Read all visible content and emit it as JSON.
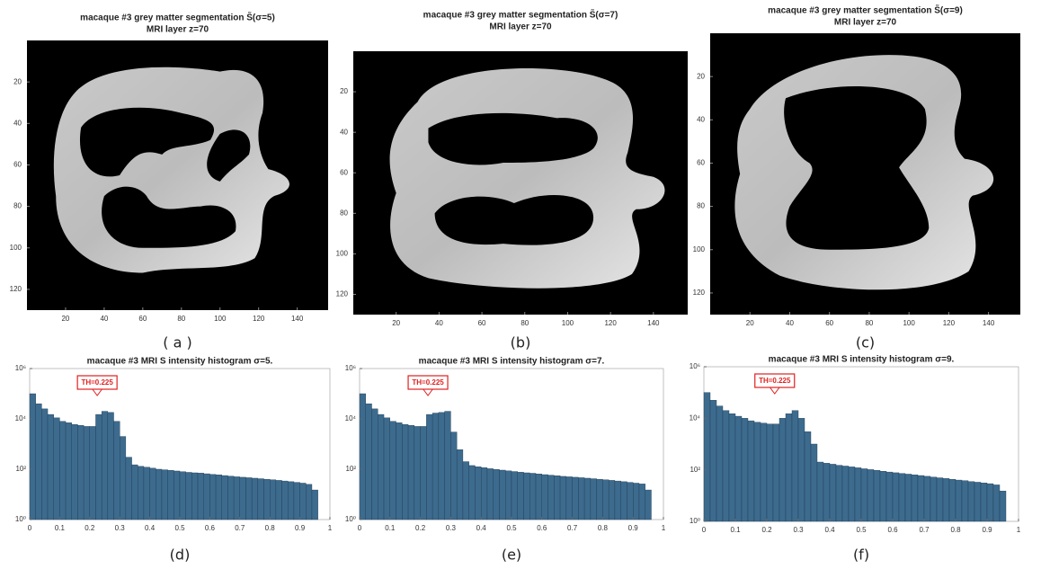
{
  "chart_data": [
    {
      "type": "image",
      "title": "macaque #3 grey matter segmentation S̃(σ=5)",
      "subtitle": "MRI layer z=70",
      "caption": "( a )",
      "xlim": [
        0,
        156
      ],
      "ylim": [
        130,
        0
      ],
      "xticks": [
        20,
        40,
        60,
        80,
        100,
        120,
        140
      ],
      "yticks": [
        20,
        40,
        60,
        80,
        100,
        120
      ]
    },
    {
      "type": "image",
      "title": "macaque #3 grey matter segmentation S̃(σ=7)",
      "subtitle": "MRI layer z=70",
      "caption": "(b)",
      "xlim": [
        0,
        156
      ],
      "ylim": [
        130,
        0
      ],
      "xticks": [
        20,
        40,
        60,
        80,
        100,
        120,
        140
      ],
      "yticks": [
        20,
        40,
        60,
        80,
        100,
        120
      ]
    },
    {
      "type": "image",
      "title": "macaque #3 grey matter segmentation S̃(σ=9)",
      "subtitle": "MRI layer z=70",
      "caption": "(c)",
      "xlim": [
        0,
        156
      ],
      "ylim": [
        130,
        0
      ],
      "xticks": [
        20,
        40,
        60,
        80,
        100,
        120,
        140
      ],
      "yticks": [
        20,
        40,
        60,
        80,
        100,
        120
      ]
    },
    {
      "type": "histogram",
      "title": "macaque #3 MRI S intensity histogram σ=5.",
      "caption": "(d)",
      "color": "#3d6b8e",
      "log_y": true,
      "annotation": {
        "text": "TH=0.225",
        "x": 0.225
      },
      "xlim": [
        0,
        1
      ],
      "ylim": [
        1,
        1000000
      ],
      "xticks": [
        0,
        0.1,
        0.2,
        0.3,
        0.4,
        0.5,
        0.6,
        0.7,
        0.8,
        0.9,
        1
      ],
      "yticks": [
        {
          "value": 1,
          "label": "10⁰"
        },
        {
          "value": 100,
          "label": "10²"
        },
        {
          "value": 10000,
          "label": "10⁴"
        },
        {
          "value": 1000000,
          "label": "10⁶"
        }
      ],
      "bins": [
        0,
        0.02,
        0.04,
        0.06,
        0.08,
        0.1,
        0.12,
        0.14,
        0.16,
        0.18,
        0.2,
        0.22,
        0.24,
        0.26,
        0.28,
        0.3,
        0.32,
        0.34,
        0.36,
        0.38,
        0.4,
        0.42,
        0.44,
        0.46,
        0.48,
        0.5,
        0.52,
        0.54,
        0.56,
        0.58,
        0.6,
        0.62,
        0.64,
        0.66,
        0.68,
        0.7,
        0.72,
        0.74,
        0.76,
        0.78,
        0.8,
        0.82,
        0.84,
        0.86,
        0.88,
        0.9,
        0.92,
        0.94,
        0.96
      ],
      "values": [
        100000,
        40000,
        25000,
        15000,
        11000,
        8000,
        7000,
        6000,
        5500,
        5000,
        5000,
        15000,
        20000,
        18000,
        8000,
        2000,
        300,
        150,
        130,
        120,
        110,
        100,
        95,
        90,
        85,
        80,
        75,
        72,
        70,
        66,
        62,
        60,
        56,
        53,
        50,
        48,
        46,
        44,
        42,
        40,
        38,
        36,
        34,
        32,
        30,
        28,
        25,
        15
      ]
    },
    {
      "type": "histogram",
      "title": "macaque #3 MRI S intensity histogram σ=7.",
      "caption": "(e)",
      "color": "#3d6b8e",
      "log_y": true,
      "annotation": {
        "text": "TH=0.225",
        "x": 0.225
      },
      "xlim": [
        0,
        1
      ],
      "ylim": [
        1,
        1000000
      ],
      "xticks": [
        0,
        0.1,
        0.2,
        0.3,
        0.4,
        0.5,
        0.6,
        0.7,
        0.8,
        0.9,
        1
      ],
      "yticks": [
        {
          "value": 1,
          "label": "10⁰"
        },
        {
          "value": 100,
          "label": "10²"
        },
        {
          "value": 10000,
          "label": "10⁴"
        },
        {
          "value": 1000000,
          "label": "10⁶"
        }
      ],
      "bins": [
        0,
        0.02,
        0.04,
        0.06,
        0.08,
        0.1,
        0.12,
        0.14,
        0.16,
        0.18,
        0.2,
        0.22,
        0.24,
        0.26,
        0.28,
        0.3,
        0.32,
        0.34,
        0.36,
        0.38,
        0.4,
        0.42,
        0.44,
        0.46,
        0.48,
        0.5,
        0.52,
        0.54,
        0.56,
        0.58,
        0.6,
        0.62,
        0.64,
        0.66,
        0.68,
        0.7,
        0.72,
        0.74,
        0.76,
        0.78,
        0.8,
        0.82,
        0.84,
        0.86,
        0.88,
        0.9,
        0.92,
        0.94,
        0.96
      ],
      "values": [
        100000,
        40000,
        25000,
        15000,
        11000,
        8000,
        7000,
        6000,
        5500,
        5000,
        5000,
        15000,
        17000,
        18000,
        20000,
        3000,
        600,
        200,
        140,
        125,
        115,
        105,
        98,
        92,
        86,
        81,
        76,
        72,
        69,
        65,
        61,
        58,
        55,
        52,
        50,
        48,
        46,
        44,
        42,
        40,
        38,
        36,
        34,
        32,
        30,
        28,
        26,
        15
      ]
    },
    {
      "type": "histogram",
      "title": "macaque #3 MRI S intensity histogram σ=9.",
      "caption": "(f)",
      "color": "#3d6b8e",
      "log_y": true,
      "annotation": {
        "text": "TH=0.225",
        "x": 0.225
      },
      "xlim": [
        0,
        1
      ],
      "ylim": [
        1,
        1000000
      ],
      "xticks": [
        0,
        0.1,
        0.2,
        0.3,
        0.4,
        0.5,
        0.6,
        0.7,
        0.8,
        0.9,
        1
      ],
      "yticks": [
        {
          "value": 1,
          "label": "10⁰"
        },
        {
          "value": 100,
          "label": "10²"
        },
        {
          "value": 10000,
          "label": "10⁴"
        },
        {
          "value": 1000000,
          "label": "10⁶"
        }
      ],
      "bins": [
        0,
        0.02,
        0.04,
        0.06,
        0.08,
        0.1,
        0.12,
        0.14,
        0.16,
        0.18,
        0.2,
        0.22,
        0.24,
        0.26,
        0.28,
        0.3,
        0.32,
        0.34,
        0.36,
        0.38,
        0.4,
        0.42,
        0.44,
        0.46,
        0.48,
        0.5,
        0.52,
        0.54,
        0.56,
        0.58,
        0.6,
        0.62,
        0.64,
        0.66,
        0.68,
        0.7,
        0.72,
        0.74,
        0.76,
        0.78,
        0.8,
        0.82,
        0.84,
        0.86,
        0.88,
        0.9,
        0.92,
        0.94,
        0.96
      ],
      "values": [
        100000,
        50000,
        30000,
        20000,
        15000,
        12000,
        10000,
        8000,
        7000,
        6500,
        6000,
        6000,
        10000,
        15000,
        20000,
        10000,
        3000,
        1000,
        200,
        180,
        165,
        150,
        140,
        130,
        120,
        110,
        102,
        95,
        88,
        82,
        77,
        72,
        68,
        64,
        60,
        56,
        52,
        49,
        46,
        43,
        40,
        38,
        35,
        33,
        31,
        29,
        26,
        15
      ]
    }
  ]
}
